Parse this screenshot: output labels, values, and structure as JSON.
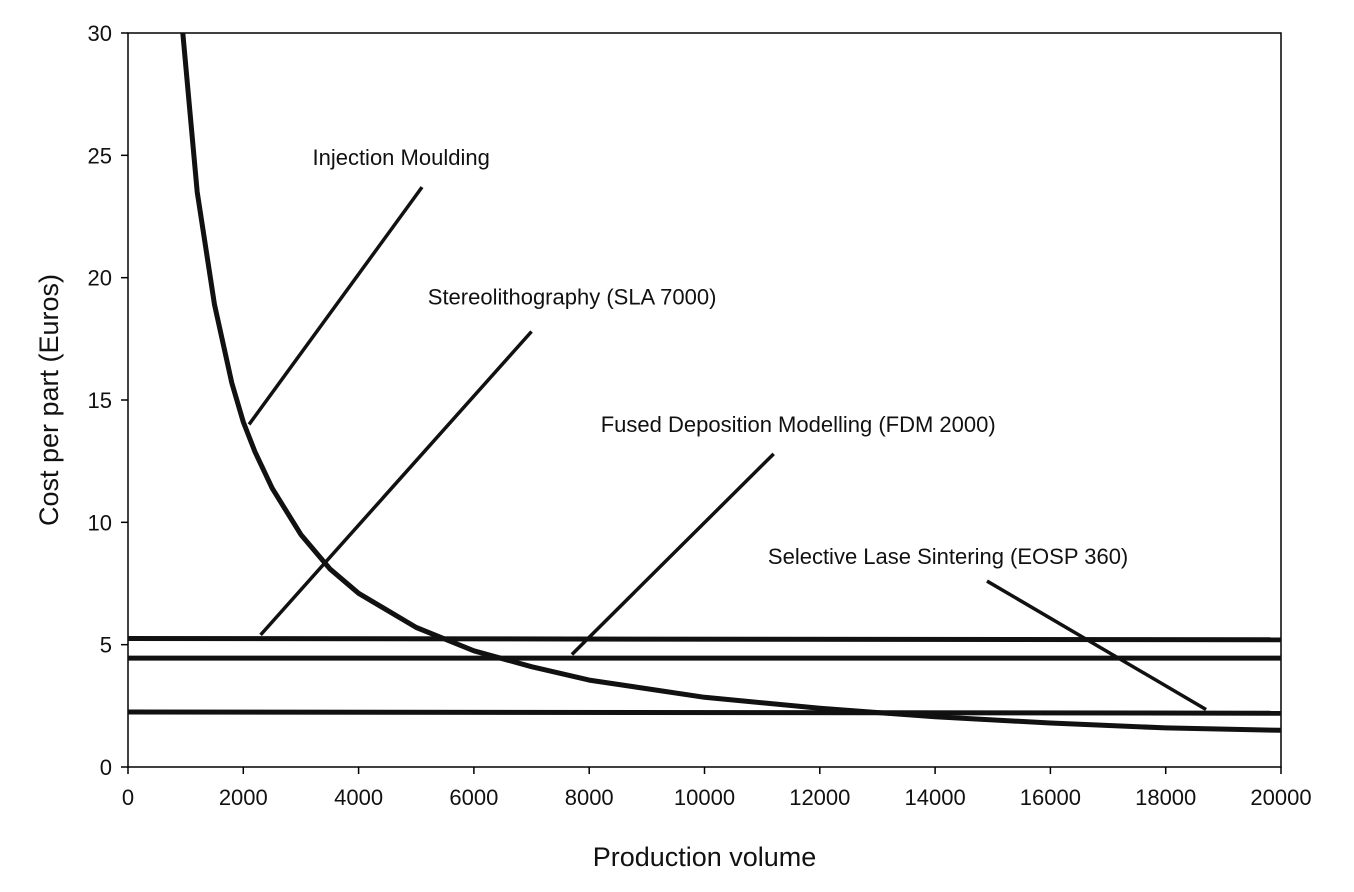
{
  "chart_data": {
    "type": "line",
    "xlabel": "Production volume",
    "ylabel": "Cost per part (Euros)",
    "xlim": [
      0,
      20000
    ],
    "ylim": [
      0,
      30
    ],
    "xticks": [
      0,
      2000,
      4000,
      6000,
      8000,
      10000,
      12000,
      14000,
      16000,
      18000,
      20000
    ],
    "yticks": [
      0,
      5,
      10,
      15,
      20,
      25,
      30
    ],
    "grid": false,
    "legend": "none",
    "series": [
      {
        "points": [
          [
            950,
            30
          ],
          [
            1200,
            23.5
          ],
          [
            1500,
            18.9
          ],
          [
            1800,
            15.7
          ],
          [
            2000,
            14.1
          ],
          [
            2200,
            12.9
          ],
          [
            2500,
            11.4
          ],
          [
            3000,
            9.5
          ],
          [
            3500,
            8.1
          ],
          [
            4000,
            7.1
          ],
          [
            5000,
            5.7
          ],
          [
            6000,
            4.75
          ],
          [
            7000,
            4.1
          ],
          [
            8000,
            3.55
          ],
          [
            10000,
            2.85
          ],
          [
            12000,
            2.4
          ],
          [
            14000,
            2.05
          ],
          [
            16000,
            1.8
          ],
          [
            18000,
            1.6
          ],
          [
            20000,
            1.5
          ]
        ]
      },
      {
        "points": [
          [
            0,
            5.25
          ],
          [
            20000,
            5.2
          ]
        ]
      },
      {
        "points": [
          [
            0,
            4.45
          ],
          [
            20000,
            4.45
          ]
        ]
      },
      {
        "points": [
          [
            0,
            2.25
          ],
          [
            20000,
            2.2
          ]
        ]
      }
    ],
    "annotations": [
      {
        "text": "Injection Moulding",
        "anchor": [
          3200,
          24.6
        ],
        "line_from": [
          5100,
          23.7
        ],
        "line_to": [
          2100,
          14.0
        ]
      },
      {
        "text": "Stereolithography (SLA 7000)",
        "anchor": [
          5200,
          18.9
        ],
        "line_from": [
          7000,
          17.8
        ],
        "line_to": [
          2300,
          5.4
        ]
      },
      {
        "text": "Fused Deposition Modelling (FDM 2000)",
        "anchor": [
          8200,
          13.7
        ],
        "line_from": [
          11200,
          12.8
        ],
        "line_to": [
          7700,
          4.6
        ]
      },
      {
        "text": "Selective Lase Sintering (EOSP 360)",
        "anchor": [
          11100,
          8.3
        ],
        "line_from": [
          14900,
          7.6
        ],
        "line_to": [
          18700,
          2.35
        ]
      }
    ],
    "colors": {
      "line": "#111111",
      "axis": "#000000",
      "frame": "#000000"
    }
  }
}
